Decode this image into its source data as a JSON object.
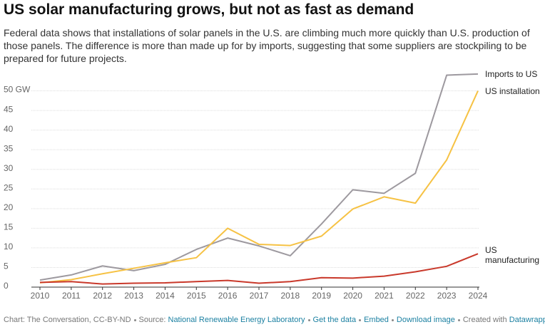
{
  "chart_data": {
    "type": "line",
    "title": "US solar manufacturing grows, but not as fast as demand",
    "subtitle": "Federal data shows that installations of solar panels in the U.S. are climbing much more quickly than U.S. production of those panels. The difference is more than made up for by imports, suggesting that some suppliers are stockpiling to be prepared for future projects.",
    "x": [
      2010,
      2011,
      2012,
      2013,
      2014,
      2015,
      2016,
      2017,
      2018,
      2019,
      2020,
      2021,
      2022,
      2023,
      2024
    ],
    "xlim": [
      2010,
      2024
    ],
    "xticks": [
      2010,
      2011,
      2012,
      2013,
      2014,
      2015,
      2016,
      2017,
      2018,
      2019,
      2020,
      2021,
      2022,
      2023,
      2024
    ],
    "ylim": [
      0,
      55
    ],
    "yticks": [
      0,
      5,
      10,
      15,
      20,
      25,
      30,
      35,
      40,
      45,
      {
        "value": 50,
        "label": "50 GW"
      }
    ],
    "grid": true,
    "series": [
      {
        "name": "Imports to US",
        "color": "#9d999f",
        "values": [
          1.8,
          3.1,
          5.4,
          4.2,
          5.8,
          9.6,
          12.5,
          10.5,
          8.0,
          16.1,
          24.8,
          23.9,
          29.0,
          54.0,
          54.3
        ]
      },
      {
        "name": "US installation",
        "color": "#f6c244",
        "values": [
          1.1,
          1.9,
          3.4,
          4.8,
          6.2,
          7.5,
          15.0,
          10.9,
          10.6,
          13.0,
          19.9,
          23.0,
          21.4,
          32.4,
          50.0
        ]
      },
      {
        "name": "US manufacturing",
        "color": "#c9392b",
        "values": [
          1.2,
          1.4,
          0.8,
          1.0,
          1.1,
          1.4,
          1.7,
          1.0,
          1.4,
          2.4,
          2.3,
          2.8,
          3.9,
          5.3,
          8.5
        ]
      }
    ]
  },
  "footer": [
    {
      "text": "Chart: The Conversation, CC-BY-ND"
    },
    {
      "label": "Source:",
      "text": "National Renewable Energy Laboratory",
      "link": true
    },
    {
      "text": "Get the data",
      "link": true
    },
    {
      "text": "Embed",
      "link": true
    },
    {
      "text": "Download image",
      "link": true
    },
    {
      "label": "Created with",
      "text": "Datawrapper",
      "link": true
    }
  ]
}
